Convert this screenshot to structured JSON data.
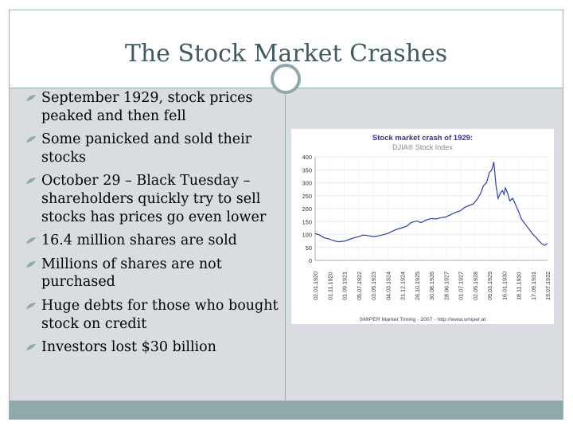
{
  "slide": {
    "title": "The Stock Market Crashes",
    "bullets": [
      "September 1929, stock prices peaked and then fell",
      "Some panicked and sold their stocks",
      "October 29 – Black Tuesday – shareholders quickly try to sell stocks has prices go even lower",
      "16.4 million shares are sold",
      "Millions of shares are not purchased",
      "Huge debts for those who bought stock on credit",
      "Investors lost $30 billion"
    ],
    "bullet_icon": "leaf-bullet-icon",
    "colors": {
      "accent": "#8fa9ab",
      "title": "#3f5a61",
      "content_bg": "#d9dde2",
      "chart_line": "#2a3fb0",
      "chart_title": "#3a2a9a"
    }
  },
  "chart_data": {
    "type": "line",
    "title": "Stock market crash of 1929:",
    "subtitle": "DJIA® Stock Index",
    "footer": "SMIPER Market Timing - 2007 - http://www.smiper.at",
    "ylim": [
      0,
      400
    ],
    "yticks": [
      0,
      50,
      100,
      150,
      200,
      250,
      300,
      350,
      400
    ],
    "xtick_labels": [
      "02.01.1920",
      "01.11.1920",
      "01.09.1921",
      "05.07.1922",
      "03.05.1923",
      "04.03.1924",
      "31.12.1924",
      "26.10.1925",
      "30.08.1926",
      "28.06.1927",
      "01.07.1927",
      "02.05.1928",
      "09.03.1929",
      "16.01.1930",
      "18.11.1930",
      "17.09.1931",
      "19.07.1932"
    ],
    "series": [
      {
        "x": [
          0.0,
          0.3,
          0.6,
          1.0,
          1.3,
          1.6,
          2.0,
          2.3,
          2.6,
          3.0,
          3.3,
          3.6,
          4.0,
          4.3,
          4.6,
          5.0,
          5.3,
          5.6,
          6.0,
          6.3,
          6.6,
          7.0,
          7.3,
          7.6,
          8.0,
          8.3,
          8.6,
          9.0,
          9.3,
          9.6,
          10.0,
          10.3,
          10.6,
          10.9,
          11.2,
          11.4,
          11.6,
          11.8,
          11.9,
          12.0,
          12.1,
          12.2,
          12.3,
          12.45,
          12.6,
          12.75,
          12.9,
          13.0,
          13.1,
          13.25,
          13.4,
          13.6,
          13.8,
          14.0,
          14.2,
          14.4,
          14.6,
          14.8,
          15.0,
          15.2,
          15.4,
          15.6,
          15.8,
          16.0
        ],
        "values": [
          104,
          98,
          88,
          82,
          76,
          72,
          74,
          80,
          86,
          92,
          98,
          96,
          92,
          94,
          98,
          104,
          112,
          120,
          126,
          132,
          146,
          152,
          146,
          155,
          162,
          160,
          164,
          168,
          176,
          184,
          192,
          205,
          212,
          218,
          240,
          260,
          290,
          300,
          320,
          340,
          345,
          355,
          381,
          290,
          240,
          260,
          270,
          255,
          280,
          260,
          230,
          240,
          215,
          190,
          160,
          145,
          130,
          115,
          100,
          90,
          75,
          65,
          58,
          66
        ]
      }
    ]
  }
}
